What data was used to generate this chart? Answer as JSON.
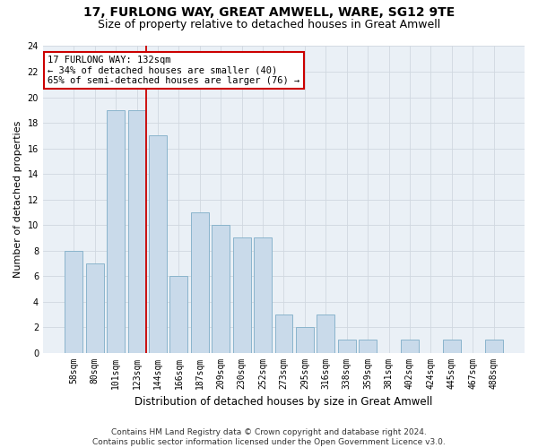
{
  "title": "17, FURLONG WAY, GREAT AMWELL, WARE, SG12 9TE",
  "subtitle": "Size of property relative to detached houses in Great Amwell",
  "xlabel": "Distribution of detached houses by size in Great Amwell",
  "ylabel": "Number of detached properties",
  "categories": [
    "58sqm",
    "80sqm",
    "101sqm",
    "123sqm",
    "144sqm",
    "166sqm",
    "187sqm",
    "209sqm",
    "230sqm",
    "252sqm",
    "273sqm",
    "295sqm",
    "316sqm",
    "338sqm",
    "359sqm",
    "381sqm",
    "402sqm",
    "424sqm",
    "445sqm",
    "467sqm",
    "488sqm"
  ],
  "values": [
    8,
    7,
    19,
    19,
    17,
    6,
    11,
    10,
    9,
    9,
    3,
    2,
    3,
    1,
    1,
    0,
    1,
    0,
    1,
    0,
    1
  ],
  "bar_color": "#c9daea",
  "bar_edge_color": "#8ab4cc",
  "grid_color": "#d0d8e0",
  "background_color": "#eaf0f6",
  "annotation_line1": "17 FURLONG WAY: 132sqm",
  "annotation_line2": "← 34% of detached houses are smaller (40)",
  "annotation_line3": "65% of semi-detached houses are larger (76) →",
  "annotation_box_color": "#ffffff",
  "annotation_box_edge": "#cc0000",
  "vline_color": "#cc0000",
  "ylim": [
    0,
    24
  ],
  "yticks": [
    0,
    2,
    4,
    6,
    8,
    10,
    12,
    14,
    16,
    18,
    20,
    22,
    24
  ],
  "footer": "Contains HM Land Registry data © Crown copyright and database right 2024.\nContains public sector information licensed under the Open Government Licence v3.0.",
  "title_fontsize": 10,
  "subtitle_fontsize": 9,
  "ylabel_fontsize": 8,
  "xlabel_fontsize": 8.5,
  "tick_fontsize": 7,
  "annotation_fontsize": 7.5,
  "footer_fontsize": 6.5
}
